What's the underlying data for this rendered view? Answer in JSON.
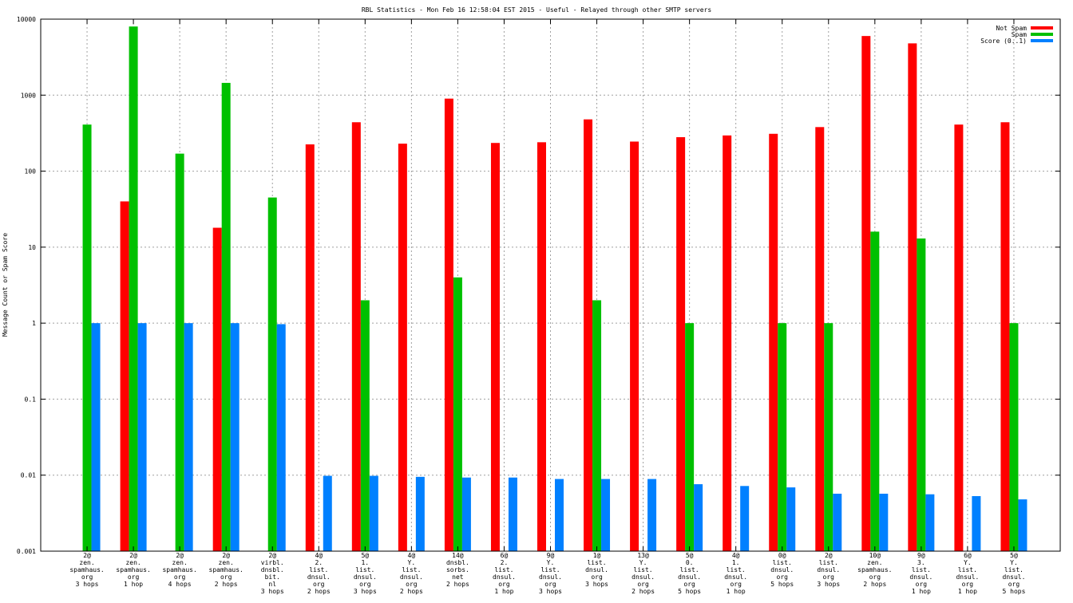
{
  "chart_data": {
    "type": "bar",
    "title": "RBL Statistics - Mon Feb 16 12:58:04 EST 2015 - Useful - Relayed through other SMTP servers",
    "xlabel": "",
    "ylabel": "Message Count or Spam Score",
    "yscale": "log",
    "ylim": [
      0.001,
      10000
    ],
    "yticks": [
      "0.001",
      "0.01",
      "0.1",
      "1",
      "10",
      "100",
      "1000",
      "10000"
    ],
    "grid": true,
    "legend_position": "top-right",
    "categories": [
      [
        "2@",
        "zen.",
        "spamhaus.",
        "org",
        "3 hops"
      ],
      [
        "2@",
        "zen.",
        "spamhaus.",
        "org",
        "1 hop"
      ],
      [
        "2@",
        "zen.",
        "spamhaus.",
        "org",
        "4 hops"
      ],
      [
        "2@",
        "zen.",
        "spamhaus.",
        "org",
        "2 hops"
      ],
      [
        "2@",
        "virbl.",
        "dnsbl.",
        "bit.",
        "nl",
        "3 hops"
      ],
      [
        "4@",
        "2.",
        "list.",
        "dnsul.",
        "org",
        "2 hops"
      ],
      [
        "5@",
        "1.",
        "list.",
        "dnsul.",
        "org",
        "3 hops"
      ],
      [
        "4@",
        "Y.",
        "list.",
        "dnsul.",
        "org",
        "2 hops"
      ],
      [
        "14@",
        "dnsbl.",
        "sorbs.",
        "net",
        "2 hops"
      ],
      [
        "6@",
        "2.",
        "list.",
        "dnsul.",
        "org",
        "1 hop"
      ],
      [
        "9@",
        "Y.",
        "list.",
        "dnsul.",
        "org",
        "3 hops"
      ],
      [
        "1@",
        "list.",
        "dnsul.",
        "org",
        "3 hops"
      ],
      [
        "13@",
        "Y.",
        "list.",
        "dnsul.",
        "org",
        "2 hops"
      ],
      [
        "5@",
        "0.",
        "list.",
        "dnsul.",
        "org",
        "5 hops"
      ],
      [
        "4@",
        "1.",
        "list.",
        "dnsul.",
        "org",
        "1 hop"
      ],
      [
        "0@",
        "list.",
        "dnsul.",
        "org",
        "5 hops"
      ],
      [
        "2@",
        "list.",
        "dnsul.",
        "org",
        "3 hops"
      ],
      [
        "10@",
        "zen.",
        "spamhaus.",
        "org",
        "2 hops"
      ],
      [
        "9@",
        "3.",
        "list.",
        "dnsul.",
        "org",
        "1 hop"
      ],
      [
        "6@",
        "Y.",
        "list.",
        "dnsul.",
        "org",
        "1 hop"
      ],
      [
        "5@",
        "Y.",
        "list.",
        "dnsul.",
        "org",
        "5 hops"
      ]
    ],
    "series": [
      {
        "name": "Not Spam",
        "color": "#ff0000",
        "values": [
          0,
          40,
          0,
          18,
          0,
          225,
          440,
          230,
          900,
          235,
          240,
          480,
          245,
          280,
          295,
          310,
          380,
          6000,
          4800,
          410,
          440
        ]
      },
      {
        "name": "Spam",
        "color": "#00c000",
        "values": [
          410,
          8000,
          170,
          1450,
          45,
          0,
          2,
          0,
          4,
          0,
          0,
          2,
          0,
          1,
          0,
          1,
          1,
          16,
          13,
          0,
          1
        ]
      },
      {
        "name": "Score (0..1)",
        "color": "#0080ff",
        "values": [
          1,
          1,
          1,
          1,
          0.97,
          0.0098,
          0.0098,
          0.0095,
          0.0093,
          0.0093,
          0.0089,
          0.0089,
          0.0089,
          0.0076,
          0.0072,
          0.0069,
          0.0057,
          0.0057,
          0.0056,
          0.0053,
          0.0048
        ]
      }
    ]
  }
}
